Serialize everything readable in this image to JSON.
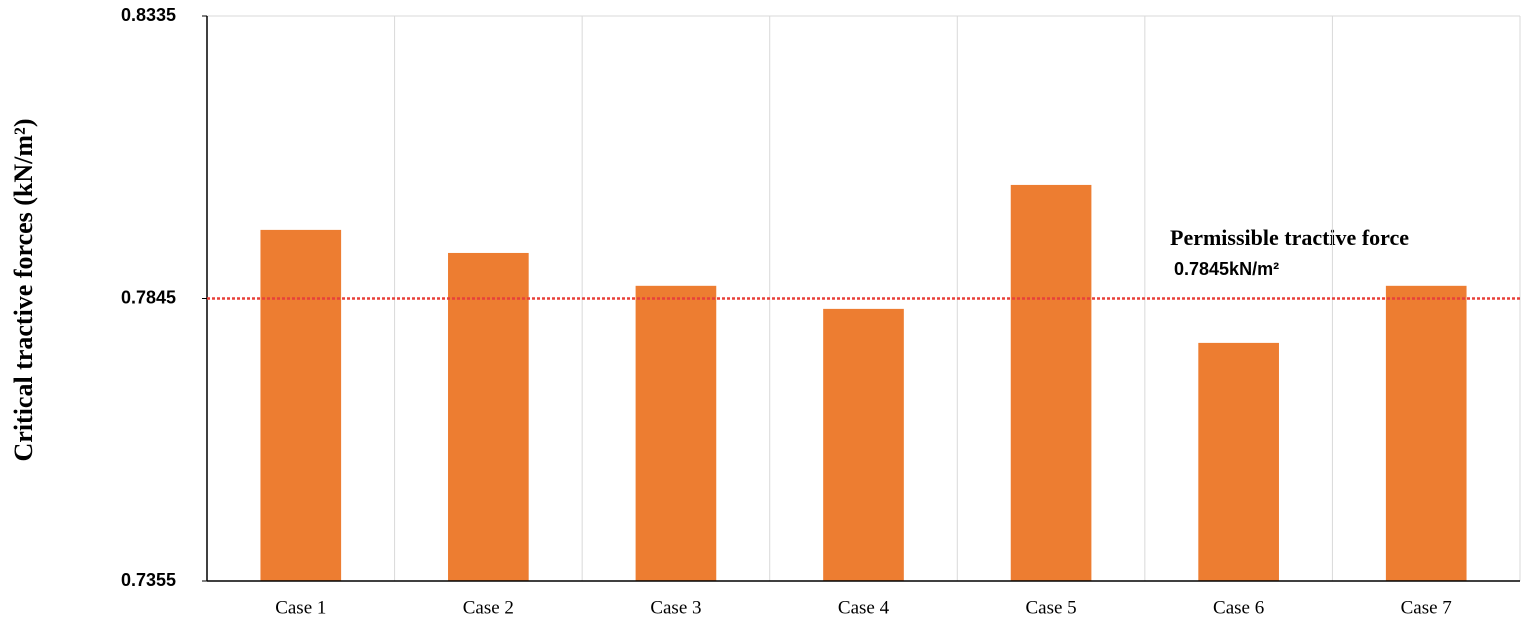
{
  "chart_data": {
    "type": "bar",
    "y_label": "Critical tractive forces (kN/m²)",
    "categories": [
      "Case 1",
      "Case 2",
      "Case 3",
      "Case 4",
      "Case 5",
      "Case 6",
      "Case 7"
    ],
    "values": [
      0.7964,
      0.7924,
      0.7867,
      0.7827,
      0.8042,
      0.7768,
      0.7867
    ],
    "color": "#ed7d31",
    "ylim": [
      0.7355,
      0.8335
    ],
    "yticks": [
      0.7355,
      0.7845,
      0.8335
    ],
    "grid": true,
    "reference_line": {
      "value": 0.7845,
      "color": "#e8403a"
    },
    "annotations": [
      "Permissible tractive force",
      "0.7845kN/m²"
    ]
  }
}
